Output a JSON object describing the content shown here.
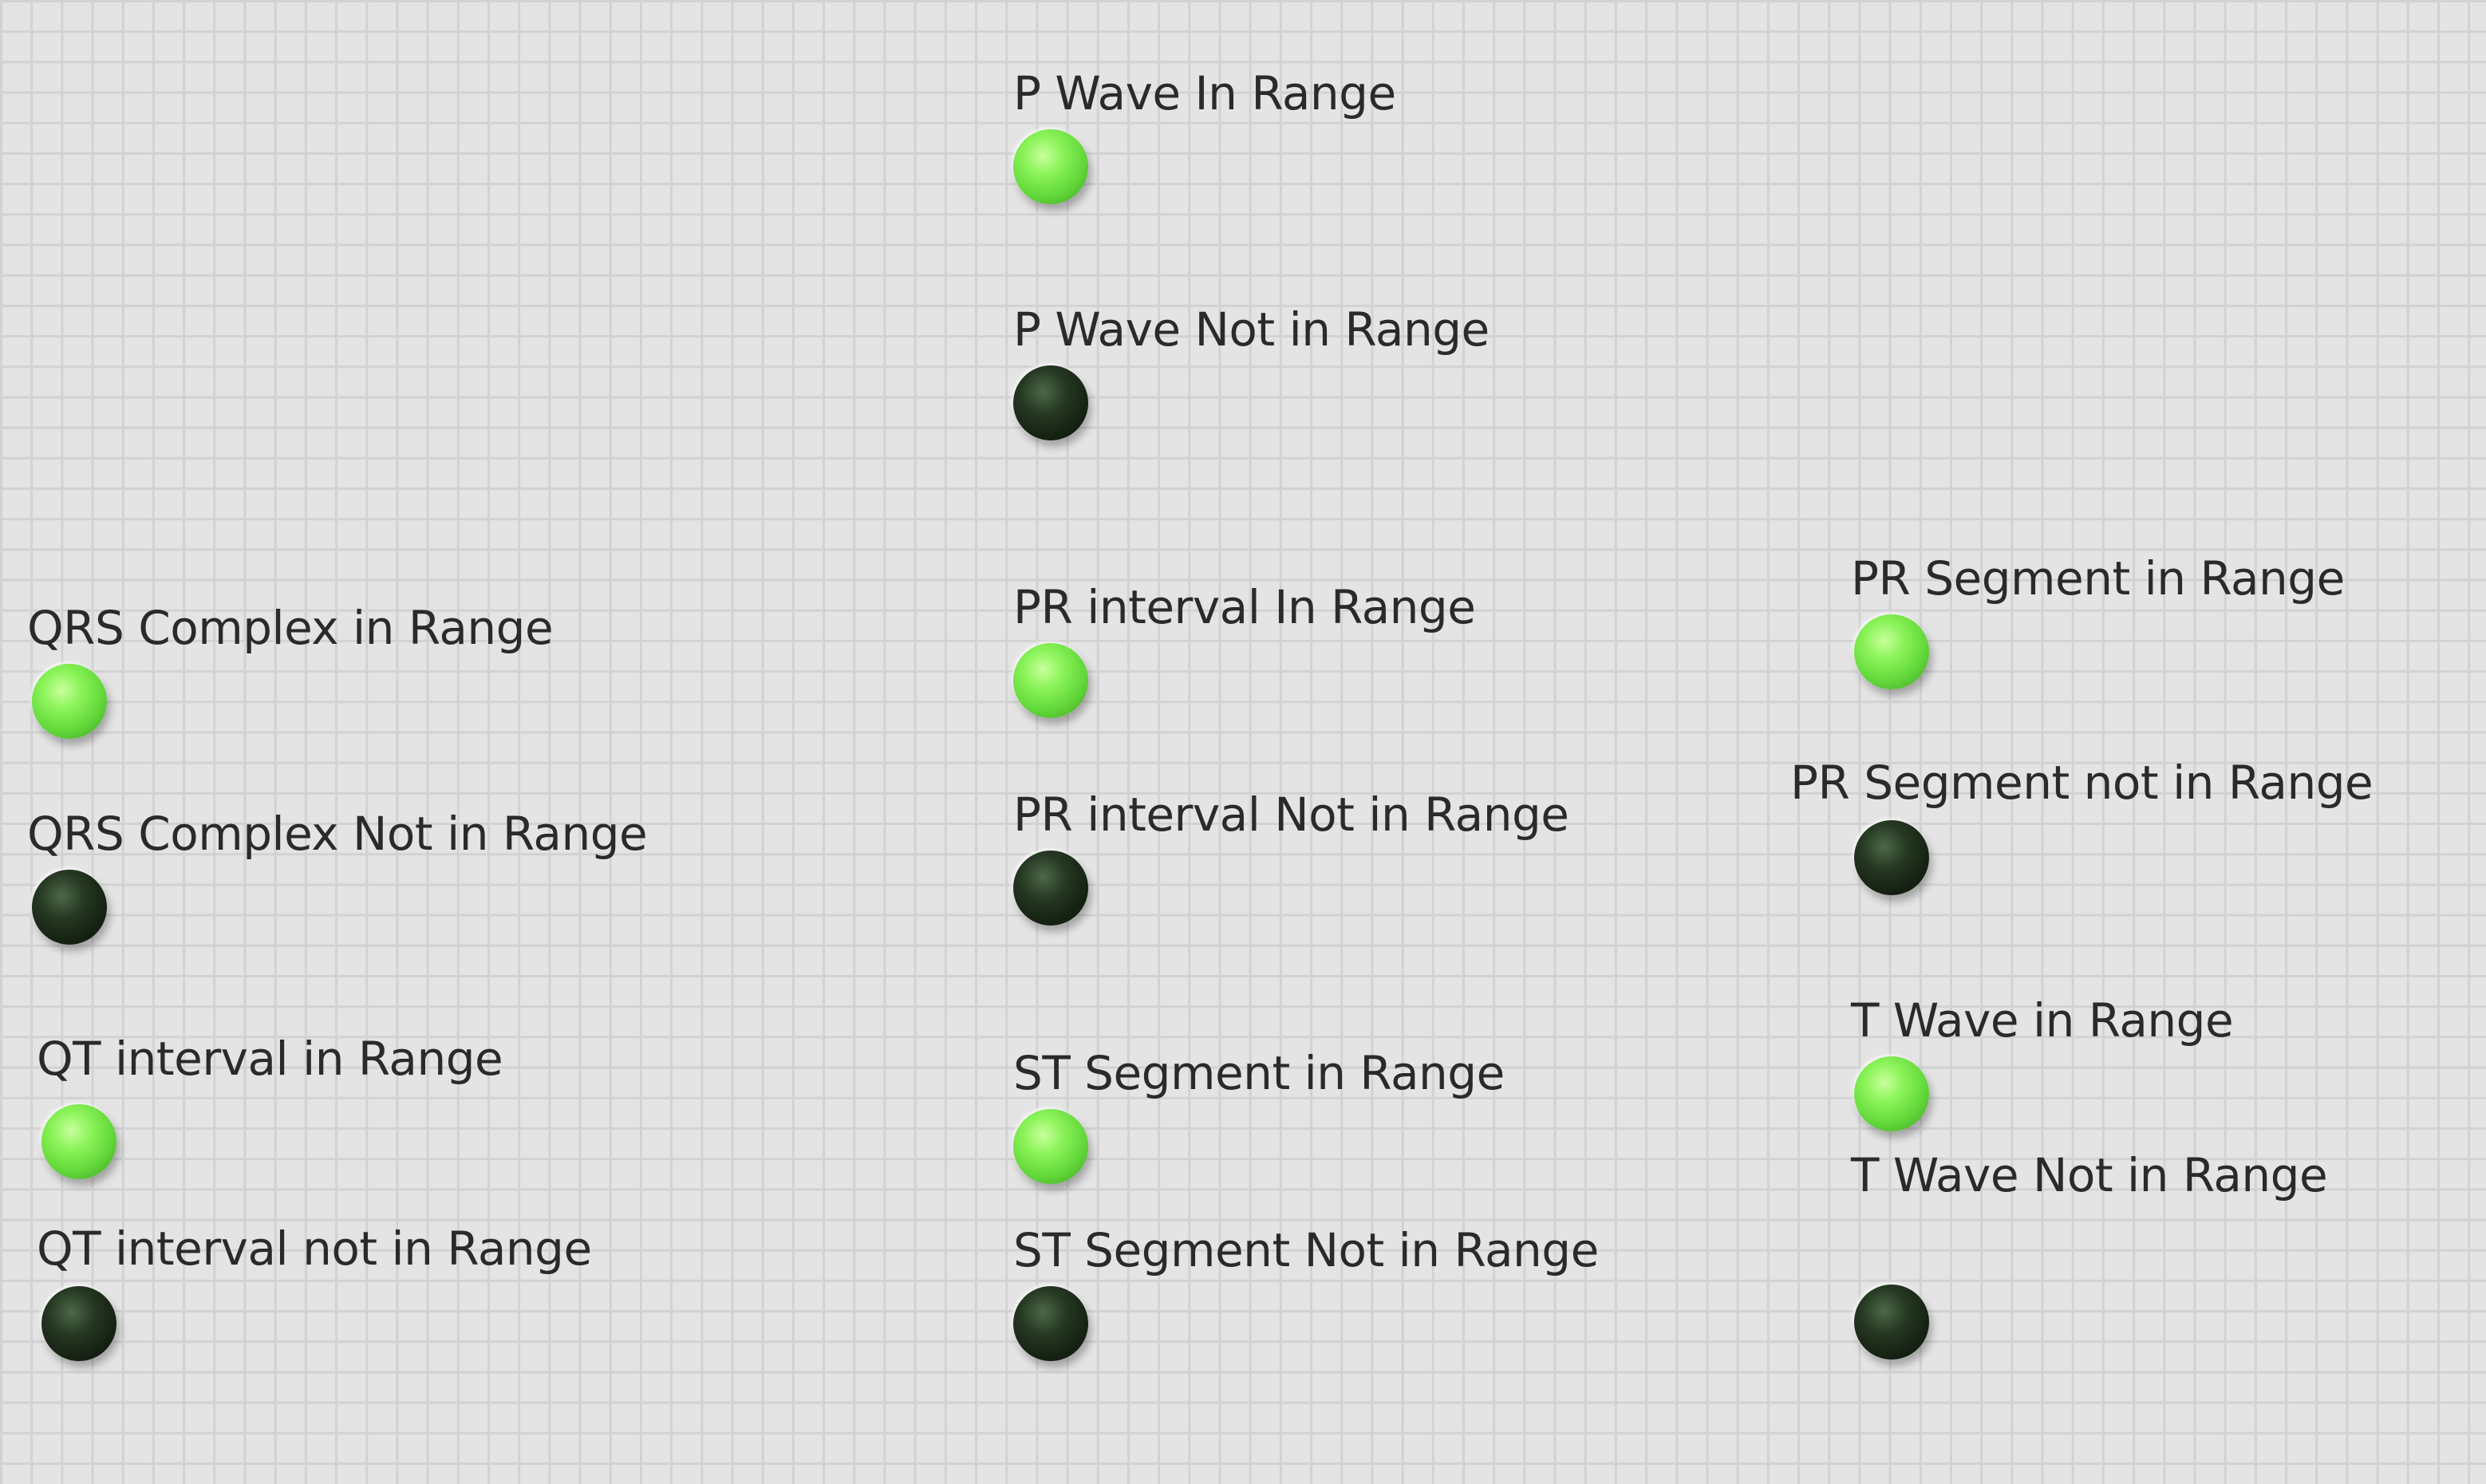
{
  "indicators": {
    "p_wave_in": {
      "label": "P Wave In Range",
      "state": "on"
    },
    "p_wave_not": {
      "label": "P Wave Not in Range",
      "state": "off"
    },
    "pr_interval_in": {
      "label": "PR interval In Range",
      "state": "on"
    },
    "pr_interval_not": {
      "label": "PR interval Not in Range",
      "state": "off"
    },
    "st_segment_in": {
      "label": "ST  Segment in Range",
      "state": "on"
    },
    "st_segment_not": {
      "label": "ST  Segment Not in Range",
      "state": "off"
    },
    "qrs_complex_in": {
      "label": "QRS Complex in Range",
      "state": "on"
    },
    "qrs_complex_not": {
      "label": "QRS Complex Not in Range",
      "state": "off"
    },
    "qt_interval_in": {
      "label": "QT interval in Range",
      "state": "on"
    },
    "qt_interval_not": {
      "label": "QT interval not in Range",
      "state": "off"
    },
    "pr_segment_in": {
      "label": "PR Segment in Range",
      "state": "on"
    },
    "pr_segment_not": {
      "label": "PR Segment not in Range",
      "state": "off"
    },
    "t_wave_in": {
      "label": "T Wave in Range",
      "state": "on"
    },
    "t_wave_not": {
      "label": "T Wave Not in Range",
      "state": "off"
    }
  },
  "colors": {
    "led_on": "#7ee84f",
    "led_off": "#1e2e1b",
    "background": "#e4e4e4",
    "grid": "#d2d2d2"
  }
}
